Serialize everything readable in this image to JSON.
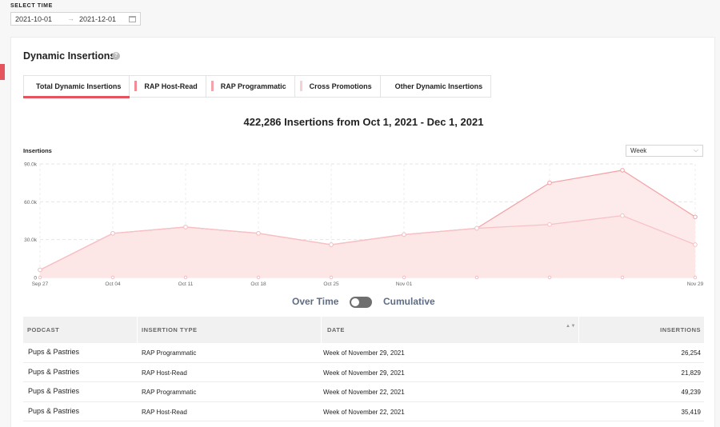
{
  "select_time": {
    "label": "SELECT TIME",
    "start": "2021-10-01",
    "arrow": "→",
    "end": "2021-12-01"
  },
  "section": {
    "title": "Dynamic Insertions",
    "help": "?"
  },
  "tabs": [
    {
      "label": "Total Dynamic Insertions",
      "color": "",
      "active": true
    },
    {
      "label": "RAP Host-Read",
      "color": "#f28b94",
      "active": false
    },
    {
      "label": "RAP Programmatic",
      "color": "#f5a3aa",
      "active": false
    },
    {
      "label": "Cross Promotions",
      "color": "#f9cfd3",
      "active": false
    },
    {
      "label": "Other Dynamic Insertions",
      "color": "",
      "active": false
    }
  ],
  "headline": "422,286 Insertions from Oct 1, 2021 - Dec 1, 2021",
  "period_select": {
    "value": "Week",
    "chevron": "⌵"
  },
  "chart_data": {
    "type": "area",
    "title": "",
    "ylabel": "Insertions",
    "xlabel": "",
    "x_ticks": [
      "Sep 27",
      "Oct 04",
      "Oct 11",
      "Oct 18",
      "Oct 25",
      "Nov 01",
      "",
      "",
      "",
      "Nov 29"
    ],
    "y_ticks": [
      "0",
      "30.0k",
      "60.0k",
      "90.0k"
    ],
    "ylim": [
      0,
      90000
    ],
    "grid": true,
    "series": [
      {
        "name": "",
        "color": "#f3a0a5",
        "values": [
          6000,
          35000,
          40000,
          35000,
          26000,
          34000,
          39000,
          75000,
          85000,
          48000
        ]
      },
      {
        "name": "",
        "color": "#f7c0c4",
        "values": [
          6000,
          35000,
          40000,
          35000,
          26000,
          34000,
          39000,
          42000,
          49000,
          26000
        ]
      }
    ]
  },
  "toggle": {
    "left": "Over Time",
    "right": "Cumulative",
    "on": false
  },
  "table": {
    "headers": {
      "podcast": "PODCAST",
      "type": "INSERTION TYPE",
      "date": "DATE",
      "sort": "▲▼",
      "insertions": "INSERTIONS"
    },
    "rows": [
      {
        "podcast": "Pups & Pastries",
        "type": "RAP Programmatic",
        "date": "Week of November 29, 2021",
        "insertions": "26,254"
      },
      {
        "podcast": "Pups & Pastries",
        "type": "RAP Host-Read",
        "date": "Week of November 29, 2021",
        "insertions": "21,829"
      },
      {
        "podcast": "Pups & Pastries",
        "type": "RAP Programmatic",
        "date": "Week of November 22, 2021",
        "insertions": "49,239"
      },
      {
        "podcast": "Pups & Pastries",
        "type": "RAP Host-Read",
        "date": "Week of November 22, 2021",
        "insertions": "35,419"
      }
    ]
  }
}
